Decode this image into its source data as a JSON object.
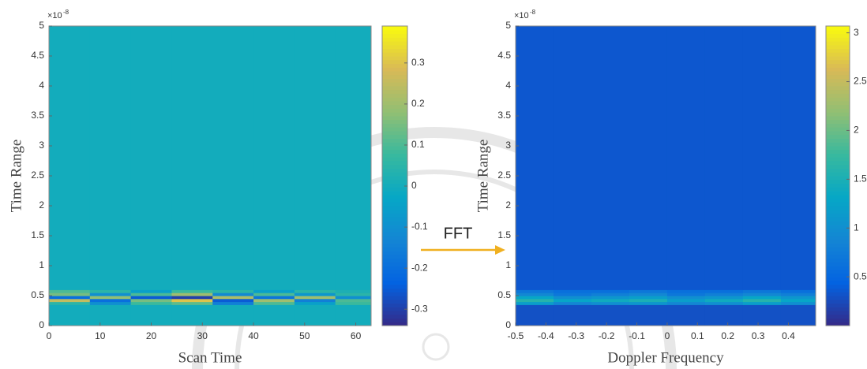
{
  "chart_data": [
    {
      "type": "heatmap",
      "annotation": "FFT",
      "xlabel": "Scan Time",
      "ylabel": "Time Range",
      "y_exponent_base": "×10",
      "y_exponent": "-8",
      "xlim": [
        0,
        63
      ],
      "ylim": [
        0,
        5
      ],
      "xticks": [
        0,
        10,
        20,
        30,
        40,
        50,
        60
      ],
      "yticks": [
        0,
        0.5,
        1,
        1.5,
        2,
        2.5,
        3,
        3.5,
        4,
        4.5,
        5
      ],
      "x_edges": [
        0,
        8,
        16,
        24,
        32,
        40,
        48,
        56,
        63
      ],
      "y_edges": [
        0,
        0.35,
        0.4,
        0.45,
        0.5,
        0.55,
        0.6,
        5
      ],
      "values": [
        [
          0,
          0,
          0,
          0,
          0,
          0,
          0,
          0
        ],
        [
          0.05,
          -0.1,
          0.08,
          0.12,
          -0.15,
          0.1,
          -0.05,
          0.08
        ],
        [
          0.25,
          -0.2,
          0.15,
          0.3,
          -0.25,
          0.2,
          -0.15,
          0.1
        ],
        [
          -0.2,
          0.18,
          -0.25,
          -0.3,
          0.22,
          -0.18,
          0.2,
          -0.1
        ],
        [
          0.15,
          -0.1,
          0.1,
          0.2,
          -0.12,
          0.1,
          -0.08,
          0.05
        ],
        [
          0.1,
          0.05,
          -0.05,
          0.08,
          0.05,
          -0.05,
          0.05,
          0.02
        ],
        [
          0,
          0,
          0,
          0,
          0,
          0,
          0,
          0
        ]
      ],
      "clim": [
        -0.34,
        0.39
      ],
      "cticks": [
        -0.3,
        -0.2,
        -0.1,
        0,
        0.1,
        0.2,
        0.3
      ],
      "colormap": [
        "#352a87",
        "#0363e1",
        "#1485d4",
        "#06a7c6",
        "#38b99e",
        "#92bf73",
        "#d9ba56",
        "#f9fb0e"
      ]
    },
    {
      "type": "heatmap",
      "xlabel": "Doppler Frequency",
      "ylabel": "Time Range",
      "y_exponent_base": "×10",
      "y_exponent": "-8",
      "xlim": [
        -0.5,
        0.49
      ],
      "ylim": [
        0,
        5
      ],
      "xticks": [
        -0.5,
        -0.4,
        -0.3,
        -0.2,
        -0.1,
        0,
        0.1,
        0.2,
        0.3,
        0.4
      ],
      "yticks": [
        0,
        0.5,
        1,
        1.5,
        2,
        2.5,
        3,
        3.5,
        4,
        4.5,
        5
      ],
      "x_edges": [
        -0.5,
        -0.375,
        -0.25,
        -0.125,
        0,
        0.125,
        0.25,
        0.375,
        0.49
      ],
      "y_edges": [
        0,
        0.35,
        0.4,
        0.45,
        0.5,
        0.55,
        0.6,
        5
      ],
      "values": [
        [
          0.3,
          0.3,
          0.3,
          0.3,
          0.3,
          0.3,
          0.3,
          0.3
        ],
        [
          1.2,
          0.9,
          1.0,
          1.1,
          0.9,
          1.0,
          1.2,
          1.0
        ],
        [
          1.6,
          1.3,
          1.4,
          1.5,
          1.2,
          1.4,
          1.6,
          1.3
        ],
        [
          1.3,
          1.0,
          1.1,
          1.2,
          1.0,
          1.1,
          1.3,
          1.1
        ],
        [
          0.9,
          0.7,
          0.8,
          0.9,
          0.7,
          0.8,
          0.9,
          0.8
        ],
        [
          0.7,
          0.6,
          0.6,
          0.7,
          0.6,
          0.6,
          0.7,
          0.6
        ],
        [
          0.35,
          0.35,
          0.35,
          0.35,
          0.35,
          0.35,
          0.35,
          0.35
        ]
      ],
      "clim": [
        0,
        3.07
      ],
      "cticks": [
        0.5,
        1,
        1.5,
        2,
        2.5,
        3
      ],
      "colormap": [
        "#352a87",
        "#0363e1",
        "#1485d4",
        "#06a7c6",
        "#38b99e",
        "#92bf73",
        "#d9ba56",
        "#f9fb0e"
      ]
    }
  ]
}
